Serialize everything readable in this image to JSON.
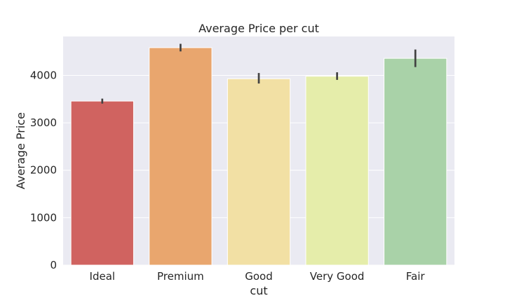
{
  "chart_data": {
    "type": "bar",
    "title": "Average Price per cut",
    "xlabel": "cut",
    "ylabel": "Average Price",
    "categories": [
      "Ideal",
      "Premium",
      "Good",
      "Very Good",
      "Fair"
    ],
    "values": [
      3458,
      4584,
      3929,
      3982,
      4359
    ],
    "error_bars": [
      [
        3405,
        3510
      ],
      [
        4505,
        4665
      ],
      [
        3828,
        4050
      ],
      [
        3905,
        4065
      ],
      [
        4175,
        4545
      ]
    ],
    "colors": [
      "#d06360",
      "#e9a66e",
      "#f2e0a4",
      "#e5edaa",
      "#a9d2a8"
    ],
    "ylim": [
      0,
      4820
    ],
    "yticks": [
      0,
      1000,
      2000,
      3000,
      4000
    ],
    "grid": true,
    "background": "#eaeaf2",
    "grid_color": "#ffffff",
    "error_color": "#424242"
  }
}
